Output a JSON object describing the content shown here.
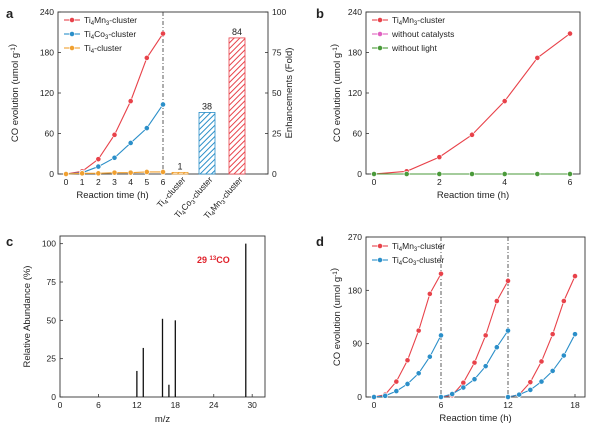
{
  "chart_data": [
    {
      "panel": "a",
      "type": "line",
      "xlabel": "Reaction time (h)",
      "ylabel": "CO evolution (umol g⁻¹)",
      "y2label": "Enhancements (Fold)",
      "x": [
        0,
        1,
        2,
        3,
        4,
        5,
        6
      ],
      "xticks": [
        "0",
        "1",
        "2",
        "3",
        "4",
        "5",
        "6"
      ],
      "ylim": [
        0,
        240
      ],
      "yticks": [
        "0",
        "60",
        "120",
        "180",
        "240"
      ],
      "y2lim": [
        0,
        100
      ],
      "y2ticks": [
        "0",
        "25",
        "50",
        "75",
        "100"
      ],
      "series": [
        {
          "name": "Ti4Mn3-cluster",
          "sub": {
            "base": "Ti",
            "n1": "4",
            "mid": "Mn",
            "n2": "3",
            "tail": "-cluster"
          },
          "color": "#e8424a",
          "values": [
            0,
            4,
            22,
            58,
            108,
            172,
            208
          ]
        },
        {
          "name": "Ti4Co3-cluster",
          "sub": {
            "base": "Ti",
            "n1": "4",
            "mid": "Co",
            "n2": "3",
            "tail": "-cluster"
          },
          "color": "#2b8fc9",
          "values": [
            0,
            2,
            11,
            24,
            46,
            68,
            103
          ]
        },
        {
          "name": "Ti4-cluster",
          "sub": {
            "base": "Ti",
            "n1": "4",
            "mid": "",
            "n2": "",
            "tail": "-cluster"
          },
          "color": "#f0a030",
          "values": [
            0,
            1,
            1,
            2,
            2,
            3,
            3
          ]
        }
      ],
      "bars": {
        "categories": [
          "Ti4-cluster",
          "Ti4Co3-cluster",
          "Ti4Mn3-cluster"
        ],
        "values": [
          1,
          38,
          84
        ],
        "labels": [
          "1",
          "38",
          "84"
        ],
        "colors": [
          "#f0a030",
          "#2b8fc9",
          "#e8424a"
        ]
      }
    },
    {
      "panel": "b",
      "type": "line",
      "xlabel": "Reaction time (h)",
      "ylabel": "CO evolution (umol g⁻¹)",
      "x": [
        0,
        1,
        2,
        3,
        4,
        5,
        6
      ],
      "xticks": [
        "0",
        "2",
        "4",
        "6"
      ],
      "ylim": [
        0,
        240
      ],
      "yticks": [
        "0",
        "60",
        "120",
        "180",
        "240"
      ],
      "series": [
        {
          "name": "Ti4Mn3-cluster",
          "color": "#e8424a",
          "values": [
            0,
            4,
            25,
            58,
            108,
            172,
            208
          ]
        },
        {
          "name": "without catalysts",
          "color": "#e060c0",
          "values": [
            0,
            0,
            0,
            0,
            0,
            0,
            0
          ]
        },
        {
          "name": "without light",
          "color": "#4a9a3a",
          "values": [
            0,
            0,
            0,
            0,
            0,
            0,
            0
          ]
        }
      ]
    },
    {
      "panel": "c",
      "type": "bar",
      "xlabel": "m/z",
      "ylabel": "Relative Abundance (%)",
      "xlim": [
        0,
        32
      ],
      "xticks": [
        "0",
        "6",
        "12",
        "18",
        "24",
        "30"
      ],
      "ylim": [
        0,
        105
      ],
      "yticks": [
        "0",
        "25",
        "50",
        "75",
        "100"
      ],
      "x": [
        12,
        13,
        16,
        17,
        18,
        29
      ],
      "values": [
        17,
        32,
        51,
        8,
        50,
        100
      ],
      "annotation": "29 ¹³CO"
    },
    {
      "panel": "d",
      "type": "line",
      "xlabel": "Reaction time (h)",
      "ylabel": "CO evolution (umol g⁻¹)",
      "xlim": [
        0,
        18
      ],
      "xticks": [
        "0",
        "6",
        "12",
        "18"
      ],
      "ylim": [
        0,
        270
      ],
      "yticks": [
        "0",
        "90",
        "180",
        "270"
      ],
      "cycle_dividers": [
        6,
        12
      ],
      "x": [
        0,
        1,
        2,
        3,
        4,
        5,
        6,
        6,
        7,
        8,
        9,
        10,
        11,
        12,
        12,
        13,
        14,
        15,
        16,
        17,
        18
      ],
      "series": [
        {
          "name": "Ti4Mn3-cluster",
          "color": "#e8424a",
          "values": [
            0,
            4,
            26,
            62,
            112,
            174,
            208,
            0,
            3,
            24,
            58,
            104,
            162,
            196,
            0,
            4,
            25,
            60,
            106,
            162,
            204
          ]
        },
        {
          "name": "Ti4Co3-cluster",
          "color": "#2b8fc9",
          "values": [
            0,
            2,
            10,
            22,
            40,
            68,
            104,
            0,
            5,
            16,
            30,
            52,
            84,
            112,
            0,
            4,
            12,
            26,
            44,
            70,
            106
          ]
        }
      ]
    }
  ],
  "panel_letters": [
    "a",
    "b",
    "c",
    "d"
  ]
}
